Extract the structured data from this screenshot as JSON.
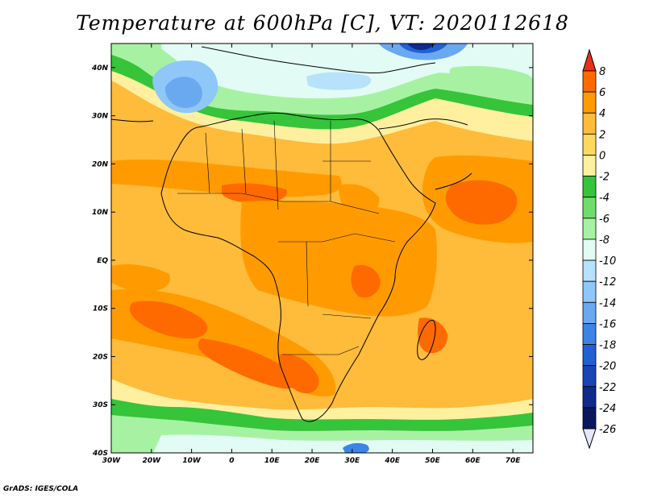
{
  "title": "Temperature at 600hPa [C], VT: 2020112618",
  "credit": "GrADS: IGES/COLA",
  "map": {
    "lon_range": [
      -30,
      75
    ],
    "lat_range": [
      -40,
      45
    ],
    "lon_ticks": [
      {
        "value": -30,
        "label": "30W"
      },
      {
        "value": -20,
        "label": "20W"
      },
      {
        "value": -10,
        "label": "10W"
      },
      {
        "value": 0,
        "label": "0"
      },
      {
        "value": 10,
        "label": "10E"
      },
      {
        "value": 20,
        "label": "20E"
      },
      {
        "value": 30,
        "label": "30E"
      },
      {
        "value": 40,
        "label": "40E"
      },
      {
        "value": 50,
        "label": "50E"
      },
      {
        "value": 60,
        "label": "60E"
      },
      {
        "value": 70,
        "label": "70E"
      }
    ],
    "lat_ticks": [
      {
        "value": 40,
        "label": "40N"
      },
      {
        "value": 30,
        "label": "30N"
      },
      {
        "value": 20,
        "label": "20N"
      },
      {
        "value": 10,
        "label": "10N"
      },
      {
        "value": 0,
        "label": "EQ"
      },
      {
        "value": -10,
        "label": "10S"
      },
      {
        "value": -20,
        "label": "20S"
      },
      {
        "value": -30,
        "label": "30S"
      },
      {
        "value": -40,
        "label": "40S"
      }
    ]
  },
  "colorbar": {
    "levels": [
      {
        "value": 8,
        "color": "#ff2a00"
      },
      {
        "value": 6,
        "color": "#ff6a00"
      },
      {
        "value": 4,
        "color": "#ff9b00"
      },
      {
        "value": 2,
        "color": "#ffbb3a"
      },
      {
        "value": 0,
        "color": "#ffd860"
      },
      {
        "value": -2,
        "color": "#fff0a0"
      },
      {
        "value": -4,
        "color": "#36c43a"
      },
      {
        "value": -6,
        "color": "#6fdd6c"
      },
      {
        "value": -8,
        "color": "#a7f2a2"
      },
      {
        "value": -10,
        "color": "#e2fbf4"
      },
      {
        "value": -12,
        "color": "#b6e2fb"
      },
      {
        "value": -14,
        "color": "#8fc7f8"
      },
      {
        "value": -16,
        "color": "#6aa9f0"
      },
      {
        "value": -18,
        "color": "#3c84e6"
      },
      {
        "value": -20,
        "color": "#2261d4"
      },
      {
        "value": -22,
        "color": "#1844b4"
      },
      {
        "value": -24,
        "color": "#0f2a8c"
      },
      {
        "value": -26,
        "color": "#0a165e"
      }
    ],
    "top_color": "#e8301a",
    "bottom_color": "#e6e6fa"
  }
}
